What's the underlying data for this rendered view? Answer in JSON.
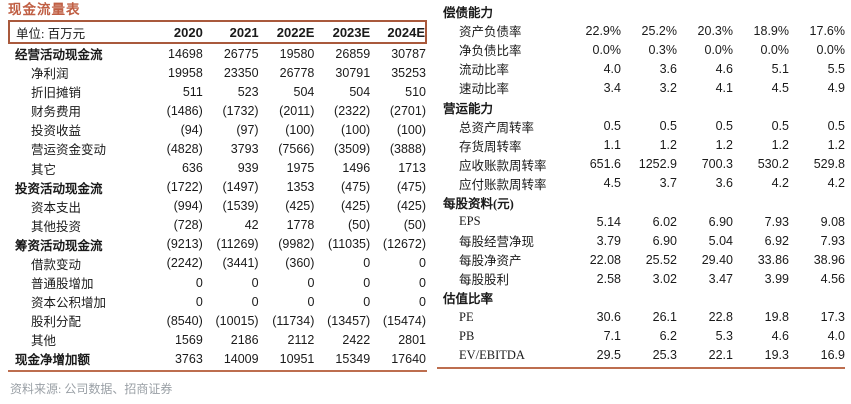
{
  "colors": {
    "accent_title": "#c05f44",
    "header_border": "#a9593c",
    "rule_line": "#bd6e4f",
    "source_gray": "#9aa0a6"
  },
  "left_table": {
    "title": "现金流量表",
    "unit_label": "单位: 百万元",
    "years": [
      "2020",
      "2021",
      "2022E",
      "2023E",
      "2024E"
    ],
    "rows": [
      {
        "label": "经营活动现金流",
        "bold": true,
        "values": [
          "14698",
          "26775",
          "19580",
          "26859",
          "30787"
        ]
      },
      {
        "label": "净利润",
        "bold": false,
        "values": [
          "19958",
          "23350",
          "26778",
          "30791",
          "35253"
        ]
      },
      {
        "label": "折旧摊销",
        "bold": false,
        "values": [
          "511",
          "523",
          "504",
          "504",
          "510"
        ]
      },
      {
        "label": "财务费用",
        "bold": false,
        "values": [
          "(1486)",
          "(1732)",
          "(2011)",
          "(2322)",
          "(2701)"
        ]
      },
      {
        "label": "投资收益",
        "bold": false,
        "values": [
          "(94)",
          "(97)",
          "(100)",
          "(100)",
          "(100)"
        ]
      },
      {
        "label": "营运资金变动",
        "bold": false,
        "values": [
          "(4828)",
          "3793",
          "(7566)",
          "(3509)",
          "(3888)"
        ]
      },
      {
        "label": "其它",
        "bold": false,
        "values": [
          "636",
          "939",
          "1975",
          "1496",
          "1713"
        ]
      },
      {
        "label": "投资活动现金流",
        "bold": true,
        "values": [
          "(1722)",
          "(1497)",
          "1353",
          "(475)",
          "(475)"
        ]
      },
      {
        "label": "资本支出",
        "bold": false,
        "values": [
          "(994)",
          "(1539)",
          "(425)",
          "(425)",
          "(425)"
        ]
      },
      {
        "label": "其他投资",
        "bold": false,
        "values": [
          "(728)",
          "42",
          "1778",
          "(50)",
          "(50)"
        ]
      },
      {
        "label": "筹资活动现金流",
        "bold": true,
        "values": [
          "(9213)",
          "(11269)",
          "(9982)",
          "(11035)",
          "(12672)"
        ]
      },
      {
        "label": "借款变动",
        "bold": false,
        "values": [
          "(2242)",
          "(3441)",
          "(360)",
          "0",
          "0"
        ]
      },
      {
        "label": "普通股增加",
        "bold": false,
        "values": [
          "0",
          "0",
          "0",
          "0",
          "0"
        ]
      },
      {
        "label": "资本公积增加",
        "bold": false,
        "values": [
          "0",
          "0",
          "0",
          "0",
          "0"
        ]
      },
      {
        "label": "股利分配",
        "bold": false,
        "values": [
          "(8540)",
          "(10015)",
          "(11734)",
          "(13457)",
          "(15474)"
        ]
      },
      {
        "label": "其他",
        "bold": false,
        "values": [
          "1569",
          "2186",
          "2112",
          "2422",
          "2801"
        ]
      },
      {
        "label": "现金净增加额",
        "bold": true,
        "values": [
          "3763",
          "14009",
          "10951",
          "15349",
          "17640"
        ]
      }
    ],
    "source_note": "资料来源: 公司数据、招商证券"
  },
  "right_table": {
    "sections": [
      {
        "header": "偿债能力",
        "rows": [
          {
            "label": "资产负债率",
            "values": [
              "22.9%",
              "25.2%",
              "20.3%",
              "18.9%",
              "17.6%"
            ]
          },
          {
            "label": "净负债比率",
            "values": [
              "0.0%",
              "0.3%",
              "0.0%",
              "0.0%",
              "0.0%"
            ]
          },
          {
            "label": "流动比率",
            "values": [
              "4.0",
              "3.6",
              "4.6",
              "5.1",
              "5.5"
            ]
          },
          {
            "label": "速动比率",
            "values": [
              "3.4",
              "3.2",
              "4.1",
              "4.5",
              "4.9"
            ]
          }
        ]
      },
      {
        "header": "营运能力",
        "rows": [
          {
            "label": "总资产周转率",
            "values": [
              "0.5",
              "0.5",
              "0.5",
              "0.5",
              "0.5"
            ]
          },
          {
            "label": "存货周转率",
            "values": [
              "1.1",
              "1.2",
              "1.2",
              "1.2",
              "1.2"
            ]
          },
          {
            "label": "应收账款周转率",
            "values": [
              "651.6",
              "1252.9",
              "700.3",
              "530.2",
              "529.8"
            ]
          },
          {
            "label": "应付账款周转率",
            "values": [
              "4.5",
              "3.7",
              "3.6",
              "4.2",
              "4.2"
            ]
          }
        ]
      },
      {
        "header": "每股资料(元)",
        "rows": [
          {
            "label": "EPS",
            "values": [
              "5.14",
              "6.02",
              "6.90",
              "7.93",
              "9.08"
            ]
          },
          {
            "label": "每股经营净现",
            "values": [
              "3.79",
              "6.90",
              "5.04",
              "6.92",
              "7.93"
            ]
          },
          {
            "label": "每股净资产",
            "values": [
              "22.08",
              "25.52",
              "29.40",
              "33.86",
              "38.96"
            ]
          },
          {
            "label": "每股股利",
            "values": [
              "2.58",
              "3.02",
              "3.47",
              "3.99",
              "4.56"
            ]
          }
        ]
      },
      {
        "header": "估值比率",
        "rows": [
          {
            "label": "PE",
            "values": [
              "30.6",
              "26.1",
              "22.8",
              "19.8",
              "17.3"
            ]
          },
          {
            "label": "PB",
            "values": [
              "7.1",
              "6.2",
              "5.3",
              "4.6",
              "4.0"
            ]
          },
          {
            "label": "EV/EBITDA",
            "values": [
              "29.5",
              "25.3",
              "22.1",
              "19.3",
              "16.9"
            ]
          }
        ]
      }
    ]
  }
}
